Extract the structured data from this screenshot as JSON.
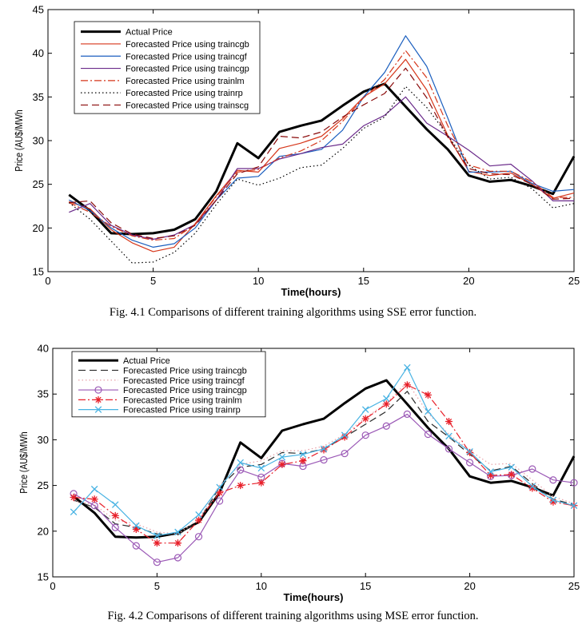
{
  "chart_data": [
    {
      "type": "line",
      "caption": "Fig. 4.1 Comparisons of different training algorithms using SSE error function.",
      "xlabel": "Time(hours)",
      "ylabel": "Price (AU$/MWh",
      "xlim": [
        0,
        25
      ],
      "ylim": [
        15,
        45
      ],
      "xticks": [
        0,
        5,
        10,
        15,
        20,
        25
      ],
      "yticks": [
        15,
        20,
        25,
        30,
        35,
        40,
        45
      ],
      "grid": false,
      "legend_position": "top-left",
      "x": [
        1,
        2,
        3,
        4,
        5,
        6,
        7,
        8,
        9,
        10,
        11,
        12,
        13,
        14,
        15,
        16,
        17,
        18,
        19,
        20,
        21,
        22,
        23,
        24,
        25
      ],
      "series": [
        {
          "name": "Actual Price",
          "color": "#000000",
          "style": "solid-thick",
          "marker": "none",
          "values": [
            23.8,
            22.0,
            19.4,
            19.3,
            19.4,
            19.8,
            21.0,
            24.2,
            29.7,
            28.0,
            31.0,
            31.7,
            32.3,
            34.0,
            35.6,
            36.5,
            33.9,
            31.3,
            29.0,
            26.0,
            25.3,
            25.5,
            24.8,
            23.9,
            28.2
          ]
        },
        {
          "name": "Forecasted Price using traincgb",
          "color": "#d6361a",
          "style": "solid",
          "marker": "none",
          "values": [
            23.0,
            22.2,
            19.8,
            18.3,
            17.3,
            17.8,
            20.5,
            23.7,
            26.6,
            26.4,
            29.1,
            29.7,
            30.5,
            32.5,
            35.0,
            36.5,
            39.3,
            35.8,
            30.6,
            26.5,
            26.0,
            26.3,
            25.0,
            23.4,
            24.0
          ]
        },
        {
          "name": "Forecasted Price using traincgf",
          "color": "#1b5fbf",
          "style": "solid",
          "marker": "none",
          "values": [
            23.2,
            22.0,
            20.0,
            18.6,
            17.8,
            18.2,
            20.0,
            23.2,
            25.7,
            25.9,
            28.2,
            28.5,
            29.0,
            31.2,
            35.0,
            37.8,
            42.0,
            38.5,
            32.6,
            26.4,
            26.4,
            26.5,
            25.1,
            24.2,
            24.4
          ]
        },
        {
          "name": "Forecasted Price using traincgp",
          "color": "#6a2a8a",
          "style": "solid",
          "marker": "none",
          "values": [
            21.8,
            22.8,
            20.3,
            19.2,
            18.7,
            19.2,
            20.4,
            23.2,
            26.8,
            26.8,
            27.9,
            28.5,
            29.2,
            29.6,
            31.7,
            32.9,
            35.0,
            32.0,
            30.5,
            28.9,
            27.1,
            27.3,
            25.4,
            23.1,
            23.1
          ]
        },
        {
          "name": "Forecasted Price using trainlm",
          "color": "#d6361a",
          "style": "dashdot",
          "marker": "none",
          "values": [
            22.9,
            21.8,
            20.2,
            19.1,
            18.6,
            18.8,
            20.4,
            23.6,
            26.4,
            26.7,
            28.0,
            28.8,
            30.0,
            32.2,
            34.9,
            37.0,
            40.3,
            37.2,
            31.7,
            27.2,
            26.5,
            26.5,
            25.3,
            23.5,
            23.5
          ]
        },
        {
          "name": "Forecasted Price using trainrp",
          "color": "#000000",
          "style": "dotted",
          "marker": "none",
          "values": [
            22.9,
            21.0,
            18.5,
            16.0,
            16.1,
            17.2,
            19.4,
            22.7,
            25.6,
            24.9,
            25.7,
            26.9,
            27.2,
            29.1,
            31.4,
            32.7,
            36.2,
            33.8,
            30.6,
            27.2,
            25.6,
            25.8,
            24.5,
            22.3,
            22.8
          ]
        },
        {
          "name": "Forecasted Price using trainscg",
          "color": "#8a0a0a",
          "style": "dashed",
          "marker": "none",
          "values": [
            22.9,
            23.1,
            20.6,
            19.3,
            18.8,
            19.1,
            20.3,
            23.2,
            26.2,
            27.0,
            30.5,
            30.3,
            31.0,
            32.7,
            34.1,
            35.4,
            38.3,
            34.9,
            30.4,
            26.8,
            26.2,
            26.1,
            25.0,
            23.3,
            23.4
          ]
        }
      ]
    },
    {
      "type": "line",
      "caption": "Fig. 4.2 Comparisons of different training algorithms using MSE error function.",
      "xlabel": "Time(hours)",
      "ylabel": "Price (AU$/MWh",
      "xlim": [
        0,
        25
      ],
      "ylim": [
        15,
        40
      ],
      "xticks": [
        0,
        5,
        10,
        15,
        20,
        25
      ],
      "yticks": [
        15,
        20,
        25,
        30,
        35,
        40
      ],
      "grid": false,
      "legend_position": "top-left",
      "x": [
        1,
        2,
        3,
        4,
        5,
        6,
        7,
        8,
        9,
        10,
        11,
        12,
        13,
        14,
        15,
        16,
        17,
        18,
        19,
        20,
        21,
        22,
        23,
        24,
        25
      ],
      "series": [
        {
          "name": "Actual Price",
          "color": "#000000",
          "style": "solid-thick",
          "marker": "none",
          "values": [
            23.8,
            22.0,
            19.4,
            19.3,
            19.4,
            19.8,
            21.0,
            24.2,
            29.7,
            28.0,
            31.0,
            31.7,
            32.3,
            34.0,
            35.6,
            36.5,
            33.9,
            31.3,
            29.0,
            26.0,
            25.3,
            25.5,
            24.8,
            23.9,
            28.2
          ]
        },
        {
          "name": "Forecasted Price using traincgb",
          "color": "#2b2b2b",
          "style": "dashed",
          "marker": "none",
          "values": [
            23.4,
            22.6,
            20.8,
            20.4,
            19.7,
            19.6,
            21.1,
            24.8,
            27.0,
            27.3,
            28.6,
            28.5,
            29.0,
            30.3,
            31.7,
            33.1,
            35.3,
            32.0,
            30.3,
            28.4,
            26.6,
            27.1,
            25.2,
            23.5,
            22.9
          ]
        },
        {
          "name": "Forecasted Price using traincgf",
          "color": "#e8a0a8",
          "style": "dotted",
          "marker": "none",
          "values": [
            23.3,
            22.9,
            21.2,
            20.8,
            19.9,
            19.7,
            21.3,
            25.0,
            27.3,
            27.7,
            28.8,
            28.8,
            29.3,
            30.6,
            32.4,
            34.0,
            36.3,
            32.9,
            30.6,
            28.8,
            27.3,
            27.4,
            25.6,
            23.8,
            23.0
          ]
        },
        {
          "name": "Forecasted Price using traincgp",
          "color": "#9b59b6",
          "style": "solid",
          "marker": "circle",
          "values": [
            24.1,
            22.8,
            20.4,
            18.4,
            16.6,
            17.1,
            19.4,
            23.3,
            26.7,
            25.9,
            27.4,
            27.1,
            27.8,
            28.5,
            30.5,
            31.5,
            32.8,
            30.6,
            29.0,
            27.5,
            26.0,
            26.1,
            26.8,
            25.6,
            25.3
          ]
        },
        {
          "name": "Forecasted Price using trainlm",
          "color": "#e8202a",
          "style": "dashdot",
          "marker": "star",
          "values": [
            23.7,
            23.5,
            21.7,
            20.2,
            18.7,
            18.7,
            21.2,
            24.2,
            25.0,
            25.3,
            27.3,
            27.7,
            28.9,
            30.3,
            32.3,
            33.9,
            36.0,
            34.9,
            32.0,
            28.6,
            26.1,
            26.2,
            24.7,
            23.2,
            22.8
          ]
        },
        {
          "name": "Forecasted Price using trainrp",
          "color": "#49b3e3",
          "style": "solid",
          "marker": "x",
          "values": [
            22.1,
            24.6,
            22.9,
            20.6,
            19.5,
            19.9,
            21.8,
            24.8,
            27.5,
            26.9,
            28.1,
            28.4,
            29.0,
            30.5,
            33.3,
            34.5,
            37.9,
            33.1,
            30.4,
            28.7,
            26.5,
            27.0,
            24.9,
            23.4,
            22.8
          ]
        }
      ]
    }
  ]
}
